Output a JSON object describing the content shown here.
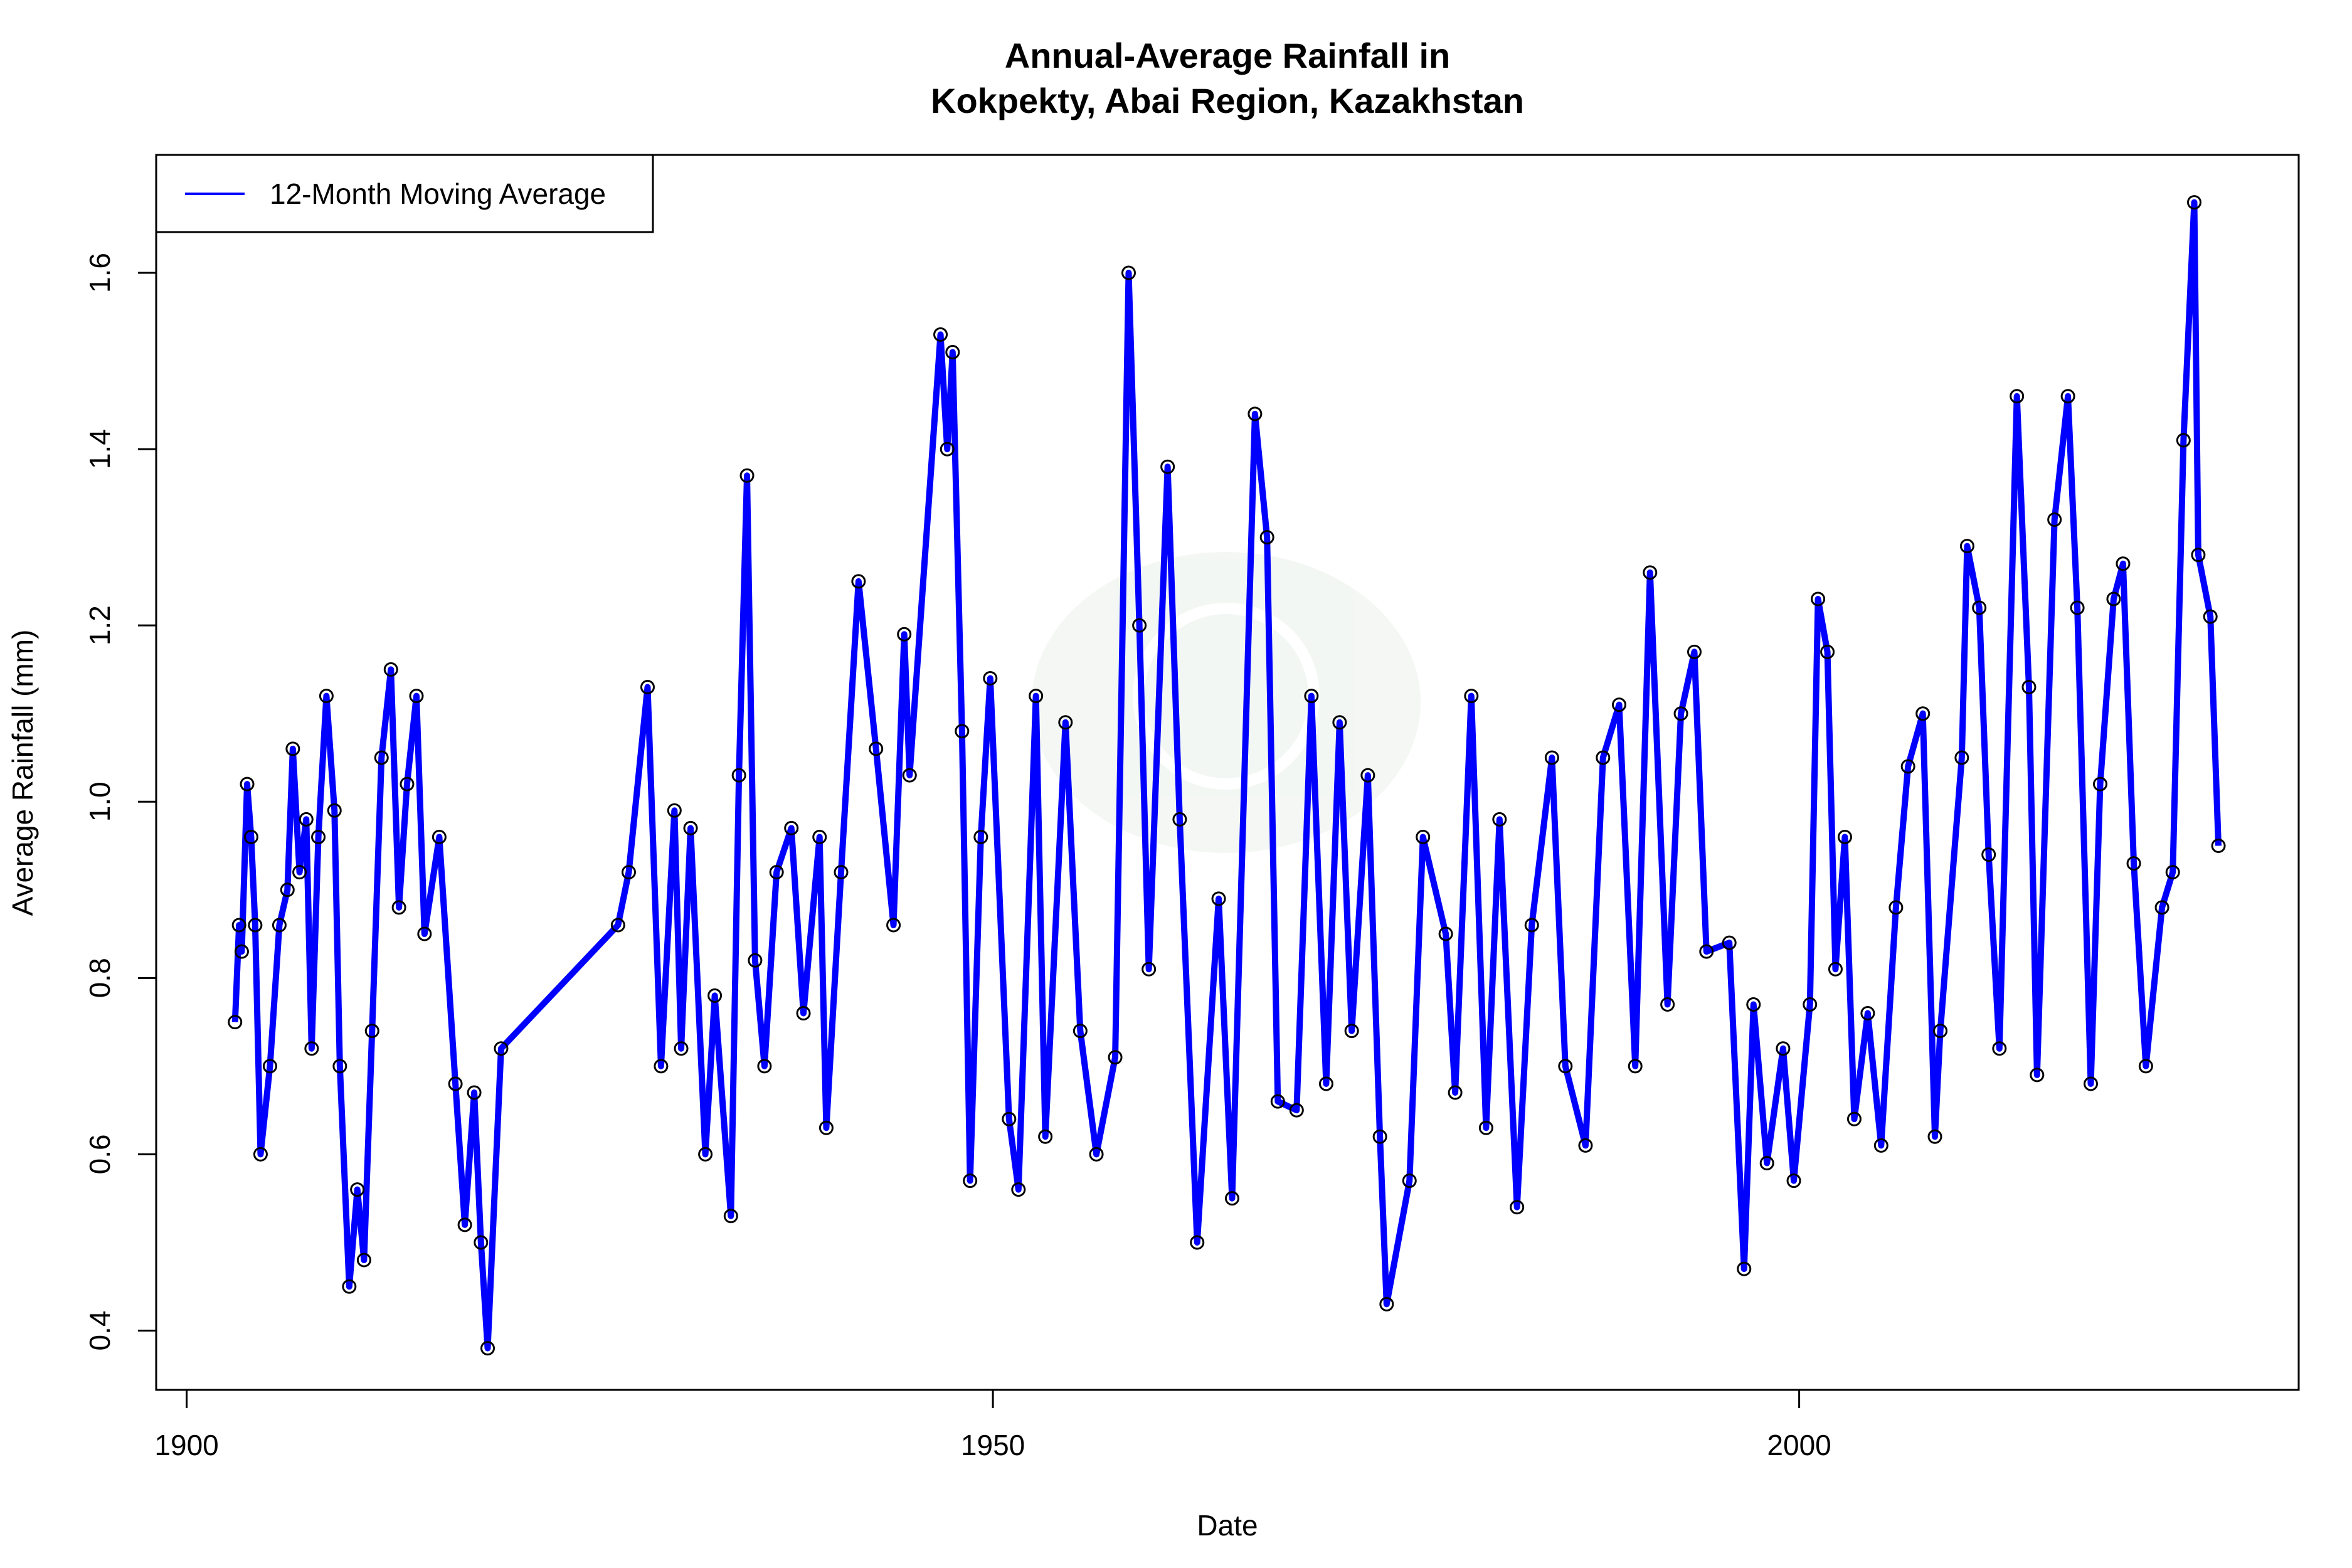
{
  "chart_data": {
    "type": "line",
    "title": [
      "Annual-Average Rainfall in",
      "Kokpekty, Abai Region, Kazakhstan"
    ],
    "xlabel": "Date",
    "ylabel": "Average Rainfall (mm)",
    "xlim": [
      "1898-01",
      "2032-01"
    ],
    "ylim": [
      0.33,
      1.73
    ],
    "x_ticks": [
      "1900",
      "1950",
      "2000"
    ],
    "y_ticks": [
      "0.4",
      "0.6",
      "0.8",
      "1.0",
      "1.2",
      "1.4",
      "1.6"
    ],
    "grid": false,
    "legend": {
      "position": "top-left",
      "entries": [
        "12-Month Moving Average"
      ]
    },
    "colors": {
      "line": "#0000ff",
      "points": "#000000"
    },
    "series": [
      {
        "name": "12-Month Moving Average",
        "points": [
          [
            "1903-01",
            0.75
          ],
          [
            "1903-04",
            0.86
          ],
          [
            "1903-06",
            0.83
          ],
          [
            "1903-10",
            1.02
          ],
          [
            "1904-01",
            0.96
          ],
          [
            "1904-04",
            0.86
          ],
          [
            "1904-08",
            0.6
          ],
          [
            "1905-03",
            0.7
          ],
          [
            "1905-10",
            0.86
          ],
          [
            "1906-04",
            0.9
          ],
          [
            "1906-08",
            1.06
          ],
          [
            "1907-01",
            0.92
          ],
          [
            "1907-06",
            0.98
          ],
          [
            "1907-10",
            0.72
          ],
          [
            "1908-03",
            0.96
          ],
          [
            "1908-09",
            1.12
          ],
          [
            "1909-03",
            0.99
          ],
          [
            "1909-07",
            0.7
          ],
          [
            "1910-02",
            0.45
          ],
          [
            "1910-08",
            0.56
          ],
          [
            "1911-01",
            0.48
          ],
          [
            "1911-07",
            0.74
          ],
          [
            "1912-02",
            1.05
          ],
          [
            "1912-09",
            1.15
          ],
          [
            "1913-03",
            0.88
          ],
          [
            "1913-09",
            1.02
          ],
          [
            "1914-04",
            1.12
          ],
          [
            "1914-10",
            0.85
          ],
          [
            "1915-09",
            0.96
          ],
          [
            "1916-09",
            0.68
          ],
          [
            "1917-04",
            0.52
          ],
          [
            "1917-11",
            0.67
          ],
          [
            "1918-04",
            0.5
          ],
          [
            "1918-09",
            0.38
          ],
          [
            "1919-07",
            0.72
          ],
          [
            "1926-10",
            0.86
          ],
          [
            "1927-06",
            0.92
          ],
          [
            "1928-08",
            1.13
          ],
          [
            "1929-06",
            0.7
          ],
          [
            "1930-04",
            0.99
          ],
          [
            "1930-09",
            0.72
          ],
          [
            "1931-04",
            0.97
          ],
          [
            "1932-03",
            0.6
          ],
          [
            "1932-10",
            0.78
          ],
          [
            "1933-10",
            0.53
          ],
          [
            "1934-04",
            1.03
          ],
          [
            "1934-10",
            1.37
          ],
          [
            "1935-04",
            0.82
          ],
          [
            "1935-11",
            0.7
          ],
          [
            "1936-08",
            0.92
          ],
          [
            "1937-07",
            0.97
          ],
          [
            "1938-04",
            0.76
          ],
          [
            "1939-04",
            0.96
          ],
          [
            "1939-09",
            0.63
          ],
          [
            "1940-08",
            0.92
          ],
          [
            "1941-09",
            1.25
          ],
          [
            "1942-10",
            1.06
          ],
          [
            "1943-11",
            0.86
          ],
          [
            "1944-07",
            1.19
          ],
          [
            "1944-11",
            1.03
          ],
          [
            "1946-10",
            1.53
          ],
          [
            "1947-03",
            1.4
          ],
          [
            "1947-07",
            1.51
          ],
          [
            "1948-02",
            1.08
          ],
          [
            "1948-08",
            0.57
          ],
          [
            "1949-04",
            0.96
          ],
          [
            "1949-11",
            1.14
          ],
          [
            "1951-01",
            0.64
          ],
          [
            "1951-08",
            0.56
          ],
          [
            "1952-09",
            1.12
          ],
          [
            "1953-04",
            0.62
          ],
          [
            "1954-07",
            1.09
          ],
          [
            "1955-06",
            0.74
          ],
          [
            "1956-06",
            0.6
          ],
          [
            "1957-08",
            0.71
          ],
          [
            "1958-06",
            1.6
          ],
          [
            "1959-02",
            1.2
          ],
          [
            "1959-09",
            0.81
          ],
          [
            "1960-11",
            1.38
          ],
          [
            "1961-08",
            0.98
          ],
          [
            "1962-09",
            0.5
          ],
          [
            "1964-01",
            0.89
          ],
          [
            "1964-11",
            0.55
          ],
          [
            "1966-04",
            1.44
          ],
          [
            "1967-01",
            1.3
          ],
          [
            "1967-09",
            0.66
          ],
          [
            "1968-11",
            0.65
          ],
          [
            "1969-10",
            1.12
          ],
          [
            "1970-09",
            0.68
          ],
          [
            "1971-07",
            1.09
          ],
          [
            "1972-04",
            0.74
          ],
          [
            "1973-04",
            1.03
          ],
          [
            "1974-01",
            0.62
          ],
          [
            "1974-06",
            0.43
          ],
          [
            "1975-11",
            0.57
          ],
          [
            "1976-09",
            0.96
          ],
          [
            "1978-02",
            0.85
          ],
          [
            "1978-09",
            0.67
          ],
          [
            "1979-09",
            1.12
          ],
          [
            "1980-08",
            0.63
          ],
          [
            "1981-06",
            0.98
          ],
          [
            "1982-07",
            0.54
          ],
          [
            "1983-06",
            0.86
          ],
          [
            "1984-09",
            1.05
          ],
          [
            "1985-07",
            0.7
          ],
          [
            "1986-10",
            0.61
          ],
          [
            "1987-11",
            1.05
          ],
          [
            "1988-11",
            1.11
          ],
          [
            "1989-11",
            0.7
          ],
          [
            "1990-10",
            1.26
          ],
          [
            "1991-11",
            0.77
          ],
          [
            "1992-09",
            1.1
          ],
          [
            "1993-07",
            1.17
          ],
          [
            "1994-04",
            0.83
          ],
          [
            "1995-09",
            0.84
          ],
          [
            "1996-08",
            0.47
          ],
          [
            "1997-03",
            0.77
          ],
          [
            "1998-01",
            0.59
          ],
          [
            "1999-01",
            0.72
          ],
          [
            "1999-09",
            0.57
          ],
          [
            "2000-09",
            0.77
          ],
          [
            "2001-03",
            1.23
          ],
          [
            "2001-10",
            1.17
          ],
          [
            "2002-04",
            0.81
          ],
          [
            "2002-11",
            0.96
          ],
          [
            "2003-06",
            0.64
          ],
          [
            "2004-04",
            0.76
          ],
          [
            "2005-02",
            0.61
          ],
          [
            "2006-01",
            0.88
          ],
          [
            "2006-10",
            1.04
          ],
          [
            "2007-09",
            1.1
          ],
          [
            "2008-06",
            0.62
          ],
          [
            "2008-10",
            0.74
          ],
          [
            "2010-02",
            1.05
          ],
          [
            "2010-06",
            1.29
          ],
          [
            "2011-03",
            1.22
          ],
          [
            "2011-10",
            0.94
          ],
          [
            "2012-06",
            0.72
          ],
          [
            "2013-07",
            1.46
          ],
          [
            "2014-04",
            1.13
          ],
          [
            "2014-10",
            0.69
          ],
          [
            "2015-11",
            1.32
          ],
          [
            "2016-09",
            1.46
          ],
          [
            "2017-04",
            1.22
          ],
          [
            "2018-02",
            0.68
          ],
          [
            "2018-09",
            1.02
          ],
          [
            "2019-07",
            1.23
          ],
          [
            "2020-02",
            1.27
          ],
          [
            "2020-10",
            0.93
          ],
          [
            "2021-07",
            0.7
          ],
          [
            "2022-07",
            0.88
          ],
          [
            "2023-03",
            0.92
          ],
          [
            "2023-11",
            1.41
          ],
          [
            "2024-07",
            1.68
          ],
          [
            "2024-10",
            1.28
          ],
          [
            "2025-07",
            1.21
          ],
          [
            "2026-01",
            0.95
          ]
        ]
      }
    ]
  }
}
